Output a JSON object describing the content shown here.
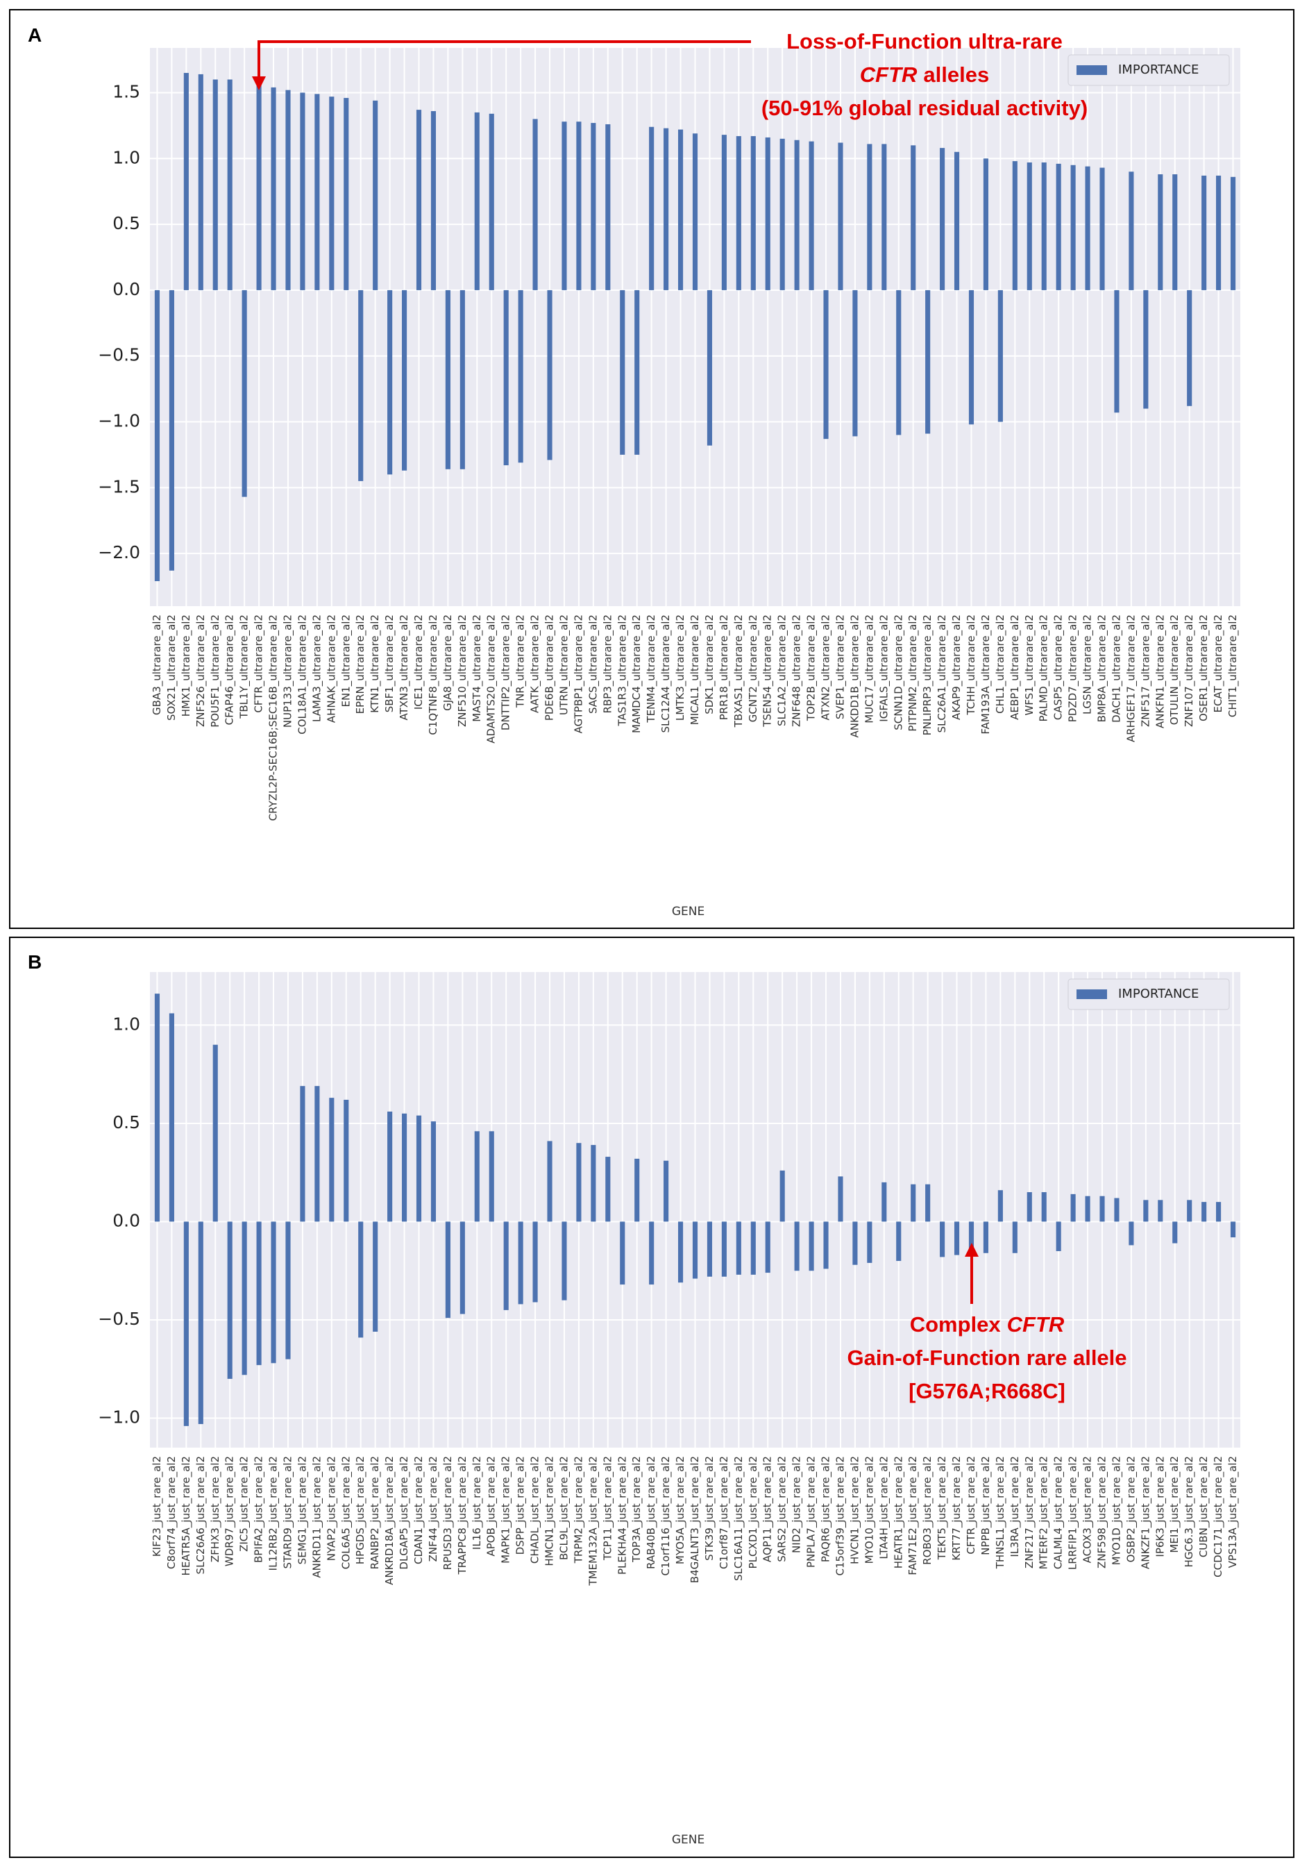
{
  "chart_data": [
    {
      "type": "bar",
      "panel": "A",
      "xlabel": "GENE",
      "annotation": [
        "Loss-of-Function ultra-rare",
        "CFTR",
        "alleles",
        "(50-91% global residual activity)"
      ],
      "categories": [
        "GBA3_ultrarare_al2",
        "SOX21_ultrarare_al2",
        "HMX1_ultrarare_al2",
        "ZNF526_ultrarare_al2",
        "POU5F1_ultrarare_al2",
        "CFAP46_ultrarare_al2",
        "TBL1Y_ultrarare_al2",
        "CFTR_ultrarare_al2",
        "CRYZL2P-SEC16B;SEC16B_ultrarare_al2",
        "NUP133_ultrarare_al2",
        "COL18A1_ultrarare_al2",
        "LAMA3_ultrarare_al2",
        "AHNAK_ultrarare_al2",
        "EN1_ultrarare_al2",
        "EPRN_ultrarare_al2",
        "KTN1_ultrarare_al2",
        "SBF1_ultrarare_al2",
        "ATXN3_ultrarare_al2",
        "ICE1_ultrarare_al2",
        "C1QTNF8_ultrarare_al2",
        "GJA8_ultrarare_al2",
        "ZNF510_ultrarare_al2",
        "MAST4_ultrarare_al2",
        "ADAMTS20_ultrarare_al2",
        "DNTTIP2_ultrarare_al2",
        "TNR_ultrarare_al2",
        "AATK_ultrarare_al2",
        "PDE6B_ultrarare_al2",
        "UTRN_ultrarare_al2",
        "AGTPBP1_ultrarare_al2",
        "SACS_ultrarare_al2",
        "RBP3_ultrarare_al2",
        "TAS1R3_ultrarare_al2",
        "MAMDC4_ultrarare_al2",
        "TENM4_ultrarare_al2",
        "SLC12A4_ultrarare_al2",
        "LMTK3_ultrarare_al2",
        "MICAL1_ultrarare_al2",
        "SDK1_ultrarare_al2",
        "PRR18_ultrarare_al2",
        "TBXAS1_ultrarare_al2",
        "GCNT2_ultrarare_al2",
        "TSEN54_ultrarare_al2",
        "SLC1A2_ultrarare_al2",
        "ZNF648_ultrarare_al2",
        "TOP2B_ultrarare_al2",
        "ATXN2_ultrarare_al2",
        "SVEP1_ultrarare_al2",
        "ANKDD1B_ultrarare_al2",
        "MUC17_ultrarare_al2",
        "IGFALS_ultrarare_al2",
        "SCNN1D_ultrarare_al2",
        "PITPNM2_ultrarare_al2",
        "PNLIPRP3_ultrarare_al2",
        "SLC26A1_ultrarare_al2",
        "AKAP9_ultrarare_al2",
        "TCHH_ultrarare_al2",
        "FAM193A_ultrarare_al2",
        "CHL1_ultrarare_al2",
        "AEBP1_ultrarare_al2",
        "WFS1_ultrarare_al2",
        "PALMD_ultrarare_al2",
        "CASP5_ultrarare_al2",
        "PDZD7_ultrarare_al2",
        "LGSN_ultrarare_al2",
        "BMP8A_ultrarare_al2",
        "DACH1_ultrarare_al2",
        "ARHGEF17_ultrarare_al2",
        "ZNF517_ultrarare_al2",
        "ANKFN1_ultrarare_al2",
        "OTULIN_ultrarare_al2",
        "ZNF107_ultrarare_al2",
        "OSER1_ultrarare_al2",
        "ECAT_ultrarare_al2",
        "CHIT1_ultrarare_al2"
      ],
      "series": [
        {
          "name": "IMPORTANCE",
          "color": "#4c72b0",
          "values": [
            -2.21,
            -2.13,
            1.65,
            1.64,
            1.6,
            1.6,
            -1.57,
            1.56,
            1.54,
            1.52,
            1.5,
            1.49,
            1.47,
            1.46,
            -1.45,
            1.44,
            -1.4,
            -1.37,
            1.37,
            1.36,
            -1.36,
            -1.36,
            1.35,
            1.34,
            -1.33,
            -1.31,
            1.3,
            -1.29,
            1.28,
            1.28,
            1.27,
            1.26,
            -1.25,
            -1.25,
            1.24,
            1.23,
            1.22,
            1.19,
            -1.18,
            1.18,
            1.17,
            1.17,
            1.16,
            1.15,
            1.14,
            1.13,
            -1.13,
            1.12,
            -1.11,
            1.11,
            1.11,
            -1.1,
            1.1,
            -1.09,
            1.08,
            1.05,
            -1.02,
            1.0,
            -1.0,
            0.98,
            0.97,
            0.97,
            0.96,
            0.95,
            0.94,
            0.93,
            -0.93,
            0.9,
            -0.9,
            0.88,
            0.88,
            -0.88,
            0.87,
            0.87,
            0.86
          ]
        }
      ],
      "ylim": [
        -2.4,
        1.84
      ],
      "yticks": [
        {
          "value": -2,
          "label": "−2.0"
        },
        {
          "value": -1.5,
          "label": "−1.5"
        },
        {
          "value": -1,
          "label": "−1.0"
        },
        {
          "value": -0.5,
          "label": "−0.5"
        },
        {
          "value": 0,
          "label": "0.0"
        },
        0.5,
        {
          "value": 1,
          "label": "1.0"
        },
        1.5
      ],
      "grid": true,
      "legend": "upper right"
    },
    {
      "type": "bar",
      "panel": "B",
      "xlabel": "GENE",
      "annotation": [
        "Complex",
        "CFTR",
        "Gain-of-Function rare allele",
        "[G576A;R668C]"
      ],
      "categories": [
        "KIF23_just_rare_al2",
        "C8orf74_just_rare_al2",
        "HEATR5A_just_rare_al2",
        "SLC26A6_just_rare_al2",
        "ZFHX3_just_rare_al2",
        "WDR97_just_rare_al2",
        "ZIC5_just_rare_al2",
        "BPIFA2_just_rare_al2",
        "IL12RB2_just_rare_al2",
        "STARD9_just_rare_al2",
        "SEMG1_just_rare_al2",
        "ANKRD11_just_rare_al2",
        "NYAP2_just_rare_al2",
        "COL6A5_just_rare_al2",
        "HPGDS_just_rare_al2",
        "RANBP2_just_rare_al2",
        "ANKRD18A_just_rare_al2",
        "DLGAP5_just_rare_al2",
        "CDAN1_just_rare_al2",
        "ZNF44_just_rare_al2",
        "RPUSD3_just_rare_al2",
        "TRAPPC8_just_rare_al2",
        "IL16_just_rare_al2",
        "APOB_just_rare_al2",
        "MAPK1_just_rare_al2",
        "DSPP_just_rare_al2",
        "CHADL_just_rare_al2",
        "HMCN1_just_rare_al2",
        "BCL9L_just_rare_al2",
        "TRPM2_just_rare_al2",
        "TMEM132A_just_rare_al2",
        "TCP11_just_rare_al2",
        "PLEKHA4_just_rare_al2",
        "TOP3A_just_rare_al2",
        "RAB40B_just_rare_al2",
        "C1orf116_just_rare_al2",
        "MYO5A_just_rare_al2",
        "B4GALNT3_just_rare_al2",
        "STK39_just_rare_al2",
        "C1orf87_just_rare_al2",
        "SLC16A11_just_rare_al2",
        "PLCXD1_just_rare_al2",
        "AQP11_just_rare_al2",
        "SARS2_just_rare_al2",
        "NID2_just_rare_al2",
        "PNPLA7_just_rare_al2",
        "PAQR6_just_rare_al2",
        "C15orf39_just_rare_al2",
        "HVCN1_just_rare_al2",
        "MYO10_just_rare_al2",
        "LTA4H_just_rare_al2",
        "HEATR1_just_rare_al2",
        "FAM71E2_just_rare_al2",
        "ROBO3_just_rare_al2",
        "TEKT5_just_rare_al2",
        "KRT77_just_rare_al2",
        "CFTR_just_rare_al2",
        "NPPB_just_rare_al2",
        "THNSL1_just_rare_al2",
        "IL3RA_just_rare_al2",
        "ZNF217_just_rare_al2",
        "MTERF2_just_rare_al2",
        "CALML4_just_rare_al2",
        "LRRFIP1_just_rare_al2",
        "ACOX3_just_rare_al2",
        "ZNF598_just_rare_al2",
        "MYO1D_just_rare_al2",
        "OSBP2_just_rare_al2",
        "ANKZF1_just_rare_al2",
        "IP6K3_just_rare_al2",
        "MEI1_just_rare_al2",
        "HGC6.3_just_rare_al2",
        "CUBN_just_rare_al2",
        "CCDC171_just_rare_al2",
        "VPS13A_just_rare_al2"
      ],
      "series": [
        {
          "name": "IMPORTANCE",
          "color": "#4c72b0",
          "values": [
            1.16,
            1.06,
            -1.04,
            -1.03,
            0.9,
            -0.8,
            -0.78,
            -0.73,
            -0.72,
            -0.7,
            0.69,
            0.69,
            0.63,
            0.62,
            -0.59,
            -0.56,
            0.56,
            0.55,
            0.54,
            0.51,
            -0.49,
            -0.47,
            0.46,
            0.46,
            -0.45,
            -0.42,
            -0.41,
            0.41,
            -0.4,
            0.4,
            0.39,
            0.33,
            -0.32,
            0.32,
            -0.32,
            0.31,
            -0.31,
            -0.29,
            -0.28,
            -0.28,
            -0.27,
            -0.27,
            -0.26,
            0.26,
            -0.25,
            -0.25,
            -0.24,
            0.23,
            -0.22,
            -0.21,
            0.2,
            -0.2,
            0.19,
            0.19,
            -0.18,
            -0.17,
            -0.17,
            -0.16,
            0.16,
            -0.16,
            0.15,
            0.15,
            -0.15,
            0.14,
            0.13,
            0.13,
            0.12,
            -0.12,
            0.11,
            0.11,
            -0.11,
            0.11,
            0.1,
            0.1,
            -0.08
          ]
        }
      ],
      "ylim": [
        -1.15,
        1.27
      ],
      "yticks": [
        {
          "value": -1,
          "label": "−1.0"
        },
        {
          "value": -0.5,
          "label": "−0.5"
        },
        {
          "value": 0,
          "label": "0.0"
        },
        0.5,
        {
          "value": 1,
          "label": "1.0"
        }
      ],
      "grid": true,
      "legend": "upper right"
    }
  ]
}
